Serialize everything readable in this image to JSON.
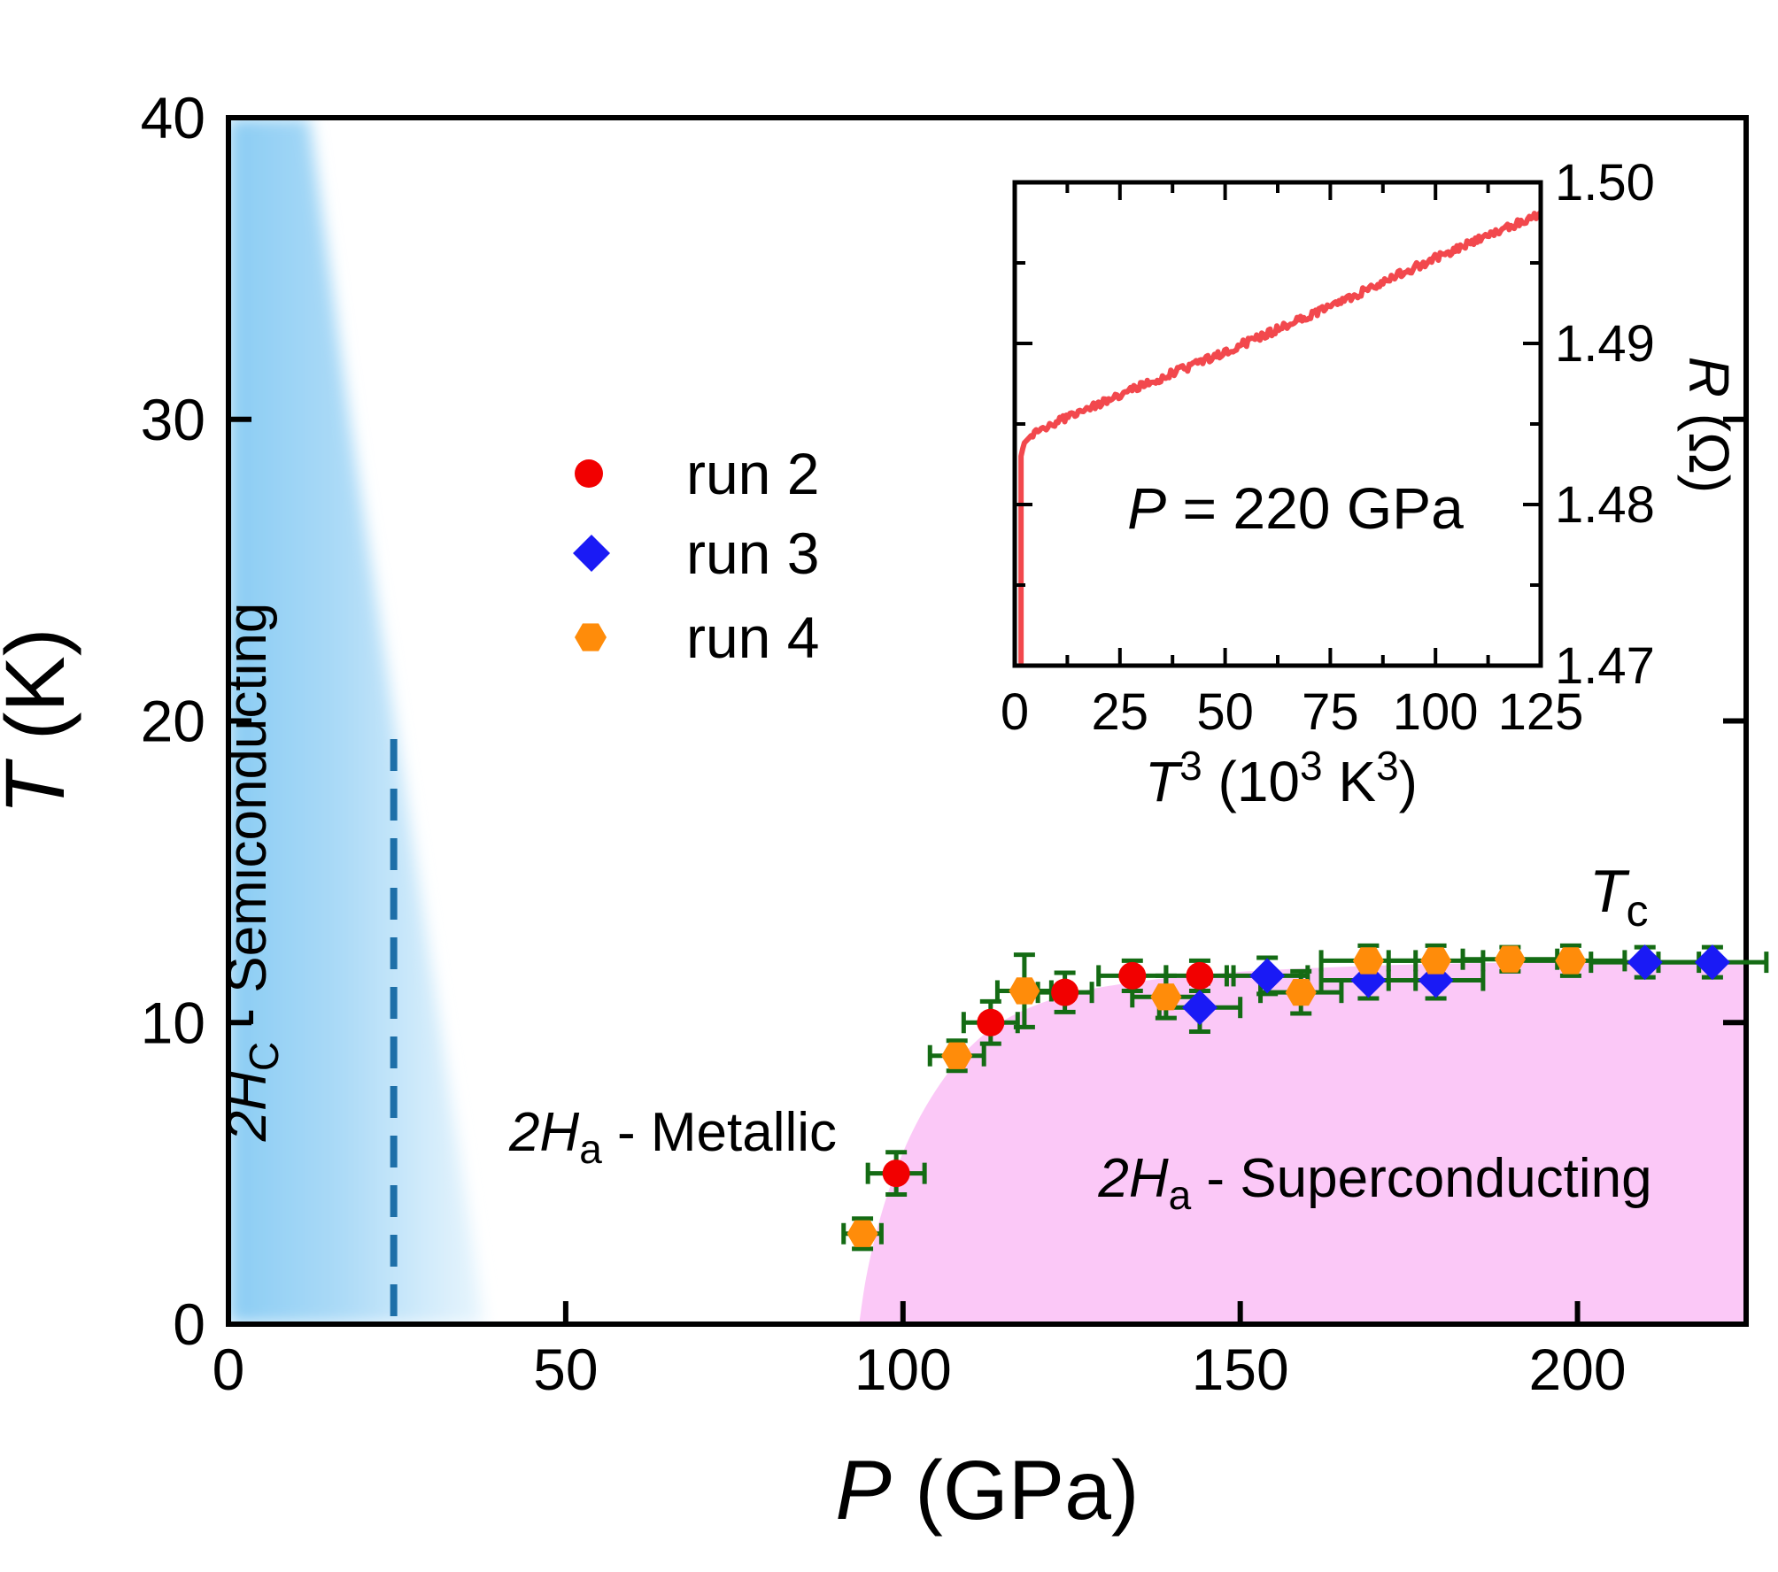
{
  "figure": {
    "colors": {
      "run2": "#f20000",
      "run3": "#1a1af5",
      "run4": "#ff8c0a",
      "error_bar": "#146b14",
      "superconducting_fill": "#fbc8f7",
      "semiconducting_fill": "#8accf3",
      "dashed_line": "#1d6fa8",
      "inset_curve": "#f2484d",
      "tc_label": "#ff00ff",
      "axis": "#000000"
    },
    "main_axes": {
      "x_title_main": "P",
      "x_title_unit": " (GPa)",
      "y_title_main": "T",
      "y_title_unit": " (K)"
    },
    "legend": [
      {
        "label": "run 2",
        "marker": "circle"
      },
      {
        "label": "run 3",
        "marker": "diamond"
      },
      {
        "label": "run 4",
        "marker": "hexagon"
      }
    ],
    "labels": {
      "semiconducting": {
        "prefix": "2H",
        "sub": "C",
        "rest": " - Semiconducting"
      },
      "metallic": {
        "prefix": "2H",
        "sub": "a",
        "rest": " - Metallic"
      },
      "superconducting": {
        "prefix": "2H",
        "sub": "a",
        "rest": " - Superconducting"
      },
      "tc": {
        "main": "T",
        "sub": "c"
      }
    },
    "inset": {
      "annotation_main": "P",
      "annotation_rest": " = 220 GPa",
      "xlabel": {
        "t": "T",
        "sup1": "3",
        "mid": " (10",
        "sup2": "3",
        "k": " K",
        "sup3": "3",
        "close": ")"
      },
      "ylabel": {
        "main": "R",
        "unit": " (Ω)"
      }
    }
  },
  "chart_data": [
    {
      "type": "scatter",
      "title": "Pressure-temperature phase diagram",
      "xlabel": "P (GPa)",
      "ylabel": "T (K)",
      "xlim": [
        0,
        225
      ],
      "ylim": [
        0,
        40
      ],
      "x_ticks": [
        0,
        50,
        100,
        150,
        200
      ],
      "y_ticks": [
        0,
        10,
        20,
        30,
        40
      ],
      "grid": false,
      "legend_position": "upper-left-inside",
      "dashed_line_p": 24.5,
      "series": [
        {
          "name": "run 2",
          "marker": "circle",
          "points": [
            [
              99,
              5.0,
              4.2,
              0.7
            ],
            [
              113,
              10.0,
              4,
              0.7
            ],
            [
              124,
              11.0,
              4,
              0.65
            ],
            [
              134,
              11.55,
              5,
              0.5
            ],
            [
              144,
              11.55,
              5,
              0.5
            ]
          ]
        },
        {
          "name": "run 3",
          "marker": "diamond",
          "points": [
            [
              144,
              10.5,
              6,
              0.8
            ],
            [
              154,
              11.55,
              6,
              0.6
            ],
            [
              169,
              11.4,
              7,
              0.6
            ],
            [
              179,
              11.4,
              7,
              0.6
            ],
            [
              210,
              12.0,
              8,
              0.5
            ],
            [
              220,
              12.0,
              8,
              0.5
            ]
          ]
        },
        {
          "name": "run 4",
          "marker": "hexagon",
          "points": [
            [
              94,
              3.0,
              2.8,
              0.5
            ],
            [
              108,
              8.9,
              4,
              0.5
            ],
            [
              118,
              11.05,
              4,
              1.2
            ],
            [
              139,
              10.85,
              5,
              0.7
            ],
            [
              159,
              11.0,
              6,
              0.7
            ],
            [
              169,
              12.05,
              7,
              0.5
            ],
            [
              179,
              12.05,
              7,
              0.5
            ],
            [
              190,
              12.1,
              7,
              0.4
            ],
            [
              199,
              12.05,
              8,
              0.5
            ]
          ]
        }
      ],
      "superconducting_boundary": [
        [
          93.5,
          0
        ],
        [
          94.5,
          1.5
        ],
        [
          96,
          3
        ],
        [
          98,
          4.5
        ],
        [
          101,
          6.2
        ],
        [
          105,
          7.8
        ],
        [
          110,
          9.2
        ],
        [
          116,
          10.2
        ],
        [
          124,
          10.9
        ],
        [
          133,
          11.3
        ],
        [
          145,
          11.6
        ],
        [
          160,
          11.8
        ],
        [
          180,
          11.95
        ],
        [
          200,
          12.0
        ],
        [
          225,
          12.05
        ]
      ],
      "semiconducting_boundary": [
        [
          12,
          40
        ],
        [
          15,
          35
        ],
        [
          18,
          30
        ],
        [
          22,
          24
        ],
        [
          26,
          18
        ],
        [
          30,
          12
        ],
        [
          34,
          6
        ],
        [
          38,
          0
        ]
      ],
      "annotations": [
        "2HC - Semiconducting",
        "2Ha - Metallic",
        "2Ha - Superconducting",
        "Tc"
      ]
    },
    {
      "type": "line",
      "title": "Inset: resistance vs T^3 at 220 GPa",
      "xlabel": "T3 (103 K3)",
      "ylabel": "R (Ω)",
      "xlim": [
        0,
        125
      ],
      "ylim": [
        1.47,
        1.5
      ],
      "x_ticks": [
        0,
        25,
        50,
        75,
        100,
        125
      ],
      "x_minor_ticks": [
        12.5,
        37.5,
        62.5,
        87.5,
        112.5
      ],
      "y_ticks": [
        "1.47",
        "1.48",
        "1.49",
        "1.50"
      ],
      "y_minor_ticks": [
        1.475,
        1.485,
        1.495
      ],
      "annotation": "P = 220 GPa",
      "curve_keypoints": [
        [
          1.5,
          1.4702
        ],
        [
          1.5,
          1.483
        ],
        [
          2.2,
          1.4838
        ],
        [
          4,
          1.4843
        ],
        [
          8,
          1.4849
        ],
        [
          15,
          1.4857
        ],
        [
          25,
          1.4868
        ],
        [
          40,
          1.4884
        ],
        [
          60,
          1.4906
        ],
        [
          80,
          1.4929
        ],
        [
          100,
          1.4953
        ],
        [
          115,
          1.497
        ],
        [
          125,
          1.498
        ]
      ],
      "noise": 0.00025
    }
  ]
}
